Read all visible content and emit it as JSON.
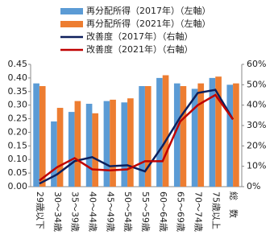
{
  "chart_data": {
    "type": "bar-line",
    "categories": [
      "29歳以下",
      "30～34歳",
      "35～39歳",
      "40～44歳",
      "45～49歳",
      "50～54歳",
      "55～59歳",
      "60～64歳",
      "65～69歳",
      "70～74歳",
      "75歳以上",
      "総　数"
    ],
    "series": [
      {
        "name": "再分配所得（2017年）（左軸）",
        "type": "bar",
        "color": "#5b9bd5",
        "values": [
          0.38,
          0.24,
          0.275,
          0.305,
          0.315,
          0.31,
          0.37,
          0.4,
          0.38,
          0.36,
          0.4,
          0.375
        ]
      },
      {
        "name": "再分配所得（2021年）（左軸）",
        "type": "bar",
        "color": "#ed7d31",
        "values": [
          0.37,
          0.29,
          0.315,
          0.27,
          0.32,
          0.325,
          0.37,
          0.41,
          0.37,
          0.38,
          0.405,
          0.38
        ]
      },
      {
        "name": "改善度（2017年）（右軸）",
        "type": "line",
        "axis": "y2",
        "color": "#0d1f5c",
        "values": [
          1.5,
          6,
          12.5,
          14.5,
          10,
          10.5,
          7.5,
          20,
          34,
          46,
          47.5,
          33
        ]
      },
      {
        "name": "改善度（2021年）（右軸）",
        "type": "line",
        "axis": "y2",
        "color": "#c00000",
        "values": [
          3,
          9.5,
          14,
          8.5,
          8,
          8.5,
          12.5,
          12.5,
          32,
          40,
          45,
          33
        ]
      }
    ],
    "ylim": [
      0,
      0.45
    ],
    "yticks": [
      {
        "value": 0,
        "label": "0.00"
      },
      {
        "value": 0.05,
        "label": "0.05"
      },
      {
        "value": 0.1,
        "label": "0.10"
      },
      {
        "value": 0.15,
        "label": "0.15"
      },
      {
        "value": 0.2,
        "label": "0.20"
      },
      {
        "value": 0.25,
        "label": "0.25"
      },
      {
        "value": 0.3,
        "label": "0.30"
      },
      {
        "value": 0.35,
        "label": "0.35"
      },
      {
        "value": 0.4,
        "label": "0.40"
      },
      {
        "value": 0.45,
        "label": "0.45"
      }
    ],
    "y2lim": [
      0,
      60
    ],
    "y2ticks": [
      {
        "value": 0,
        "label": "0%"
      },
      {
        "value": 10,
        "label": "10%"
      },
      {
        "value": 20,
        "label": "20%"
      },
      {
        "value": 30,
        "label": "30%"
      },
      {
        "value": 40,
        "label": "40%"
      },
      {
        "value": 50,
        "label": "50%"
      },
      {
        "value": 60,
        "label": "60%"
      }
    ],
    "grid": false,
    "legend": "top"
  }
}
